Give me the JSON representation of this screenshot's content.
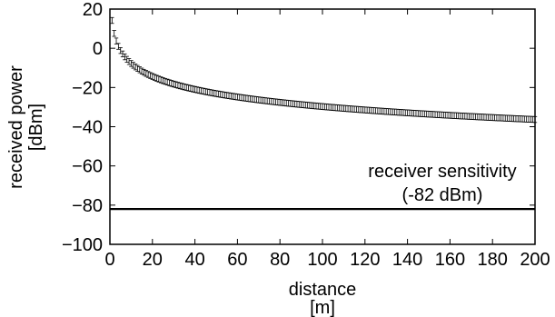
{
  "chart_data": {
    "type": "scatter",
    "title": "",
    "xlabel": [
      "distance",
      "[m]"
    ],
    "ylabel": [
      "received power",
      "[dBm]"
    ],
    "xlim": [
      0,
      200
    ],
    "ylim": [
      -100,
      20
    ],
    "xticks": [
      0,
      20,
      40,
      60,
      80,
      100,
      120,
      140,
      160,
      180,
      200
    ],
    "yticks": [
      -100,
      -80,
      -60,
      -40,
      -20,
      0,
      20
    ],
    "grid": false,
    "legend": "none",
    "series": [
      {
        "marker": "error-bar",
        "color": "#000000",
        "model": "received power = 14.2 - 21.96 * log10(x), measured every 1 m",
        "x_range": [
          1,
          200
        ],
        "x_step": 1,
        "error_half_width": 1.5
      }
    ],
    "reference_line": {
      "y": -82,
      "color": "#000000"
    },
    "annotation": {
      "lines": [
        "receiver sensitivity",
        "(-82 dBm)"
      ]
    }
  }
}
